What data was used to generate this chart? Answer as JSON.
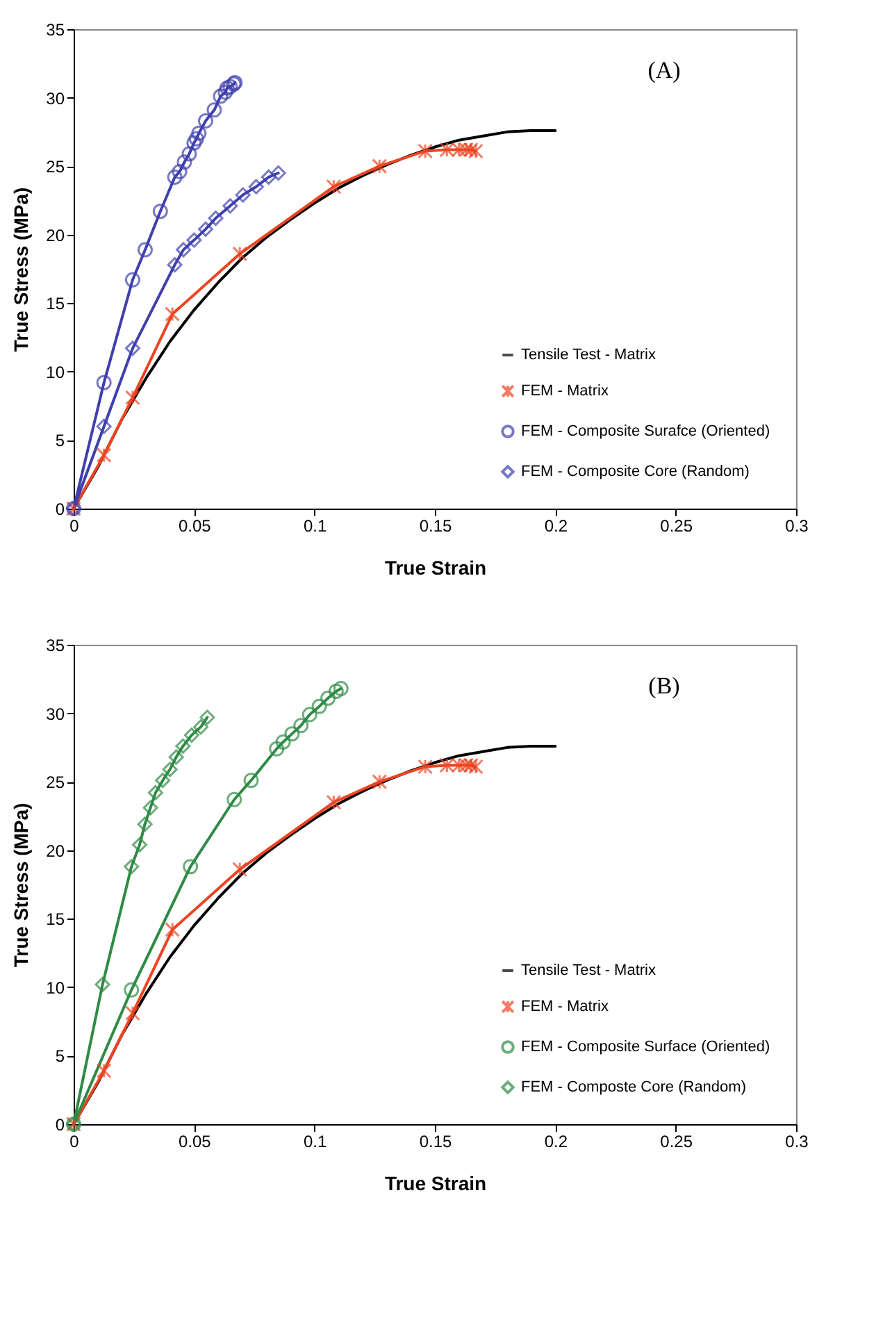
{
  "chart_data": [
    {
      "type": "line",
      "xlabel": "True Strain",
      "ylabel": "True Stress (MPa)",
      "annotations": [
        "(A)"
      ],
      "xlim": [
        0,
        0.3
      ],
      "ylim": [
        0,
        35
      ],
      "xticks": [
        0,
        0.05,
        0.1,
        0.15,
        0.2,
        0.25,
        0.3
      ],
      "yticks": [
        0,
        5,
        10,
        15,
        20,
        25,
        30,
        35
      ],
      "grid": false,
      "legend": "bottom right",
      "series": [
        {
          "name": "Tensile Test - Matrix",
          "color": "#000000",
          "marker": "none",
          "x": [
            0,
            0.01,
            0.02,
            0.03,
            0.04,
            0.05,
            0.06,
            0.07,
            0.08,
            0.09,
            0.1,
            0.11,
            0.12,
            0.13,
            0.14,
            0.15,
            0.16,
            0.17,
            0.18,
            0.19,
            0.2
          ],
          "values": [
            0,
            3,
            6.5,
            9.5,
            12.2,
            14.5,
            16.5,
            18.3,
            19.8,
            21.1,
            22.3,
            23.4,
            24.3,
            25.1,
            25.8,
            26.4,
            26.9,
            27.2,
            27.5,
            27.6,
            27.6
          ]
        },
        {
          "name": "FEM - Matrix",
          "color": "#ee4422",
          "marker": "cross",
          "x": [
            0,
            0.0126,
            0.0245,
            0.041,
            0.069,
            0.108,
            0.127,
            0.146,
            0.155,
            0.16,
            0.163,
            0.165,
            0.167
          ],
          "values": [
            0,
            3.9,
            8.1,
            14.2,
            18.6,
            23.5,
            25,
            26.1,
            26.2,
            26.2,
            26.2,
            26.2,
            26.1
          ]
        },
        {
          "name": "FEM - Composite Surafce (Oriented)",
          "color": "#3f3fae",
          "marker": "circle",
          "x": [
            0,
            0.0126,
            0.0245,
            0.0297,
            0.036,
            0.042,
            0.044,
            0.046,
            0.048,
            0.05,
            0.051,
            0.052,
            0.0548,
            0.0584,
            0.061,
            0.063,
            0.0637,
            0.065,
            0.0665,
            0.067
          ],
          "values": [
            0,
            9.2,
            16.7,
            18.9,
            21.7,
            24.2,
            24.6,
            25.3,
            25.9,
            26.7,
            27.0,
            27.4,
            28.3,
            29.1,
            30.1,
            30.4,
            30.7,
            30.8,
            31.0,
            31.1
          ]
        },
        {
          "name": "FEM - Composite Core (Random)",
          "color": "#3f3fae",
          "marker": "diamond",
          "x": [
            0,
            0.0126,
            0.0245,
            0.042,
            0.0456,
            0.05,
            0.0548,
            0.059,
            0.065,
            0.0703,
            0.0758,
            0.081,
            0.085
          ],
          "values": [
            0,
            6.0,
            11.7,
            17.8,
            18.9,
            19.6,
            20.4,
            21.2,
            22.1,
            22.9,
            23.5,
            24.2,
            24.5
          ]
        }
      ]
    },
    {
      "type": "line",
      "xlabel": "True Strain",
      "ylabel": "True Stress (MPa)",
      "annotations": [
        "(B)"
      ],
      "xlim": [
        0,
        0.3
      ],
      "ylim": [
        0,
        35
      ],
      "xticks": [
        0,
        0.05,
        0.1,
        0.15,
        0.2,
        0.25,
        0.3
      ],
      "yticks": [
        0,
        5,
        10,
        15,
        20,
        25,
        30,
        35
      ],
      "grid": false,
      "legend": "bottom right",
      "series": [
        {
          "name": "Tensile Test - Matrix",
          "color": "#000000",
          "marker": "none",
          "x": [
            0,
            0.01,
            0.02,
            0.03,
            0.04,
            0.05,
            0.06,
            0.07,
            0.08,
            0.09,
            0.1,
            0.11,
            0.12,
            0.13,
            0.14,
            0.15,
            0.16,
            0.17,
            0.18,
            0.19,
            0.2
          ],
          "values": [
            0,
            3,
            6.5,
            9.5,
            12.2,
            14.5,
            16.5,
            18.3,
            19.8,
            21.1,
            22.3,
            23.4,
            24.3,
            25.1,
            25.8,
            26.4,
            26.9,
            27.2,
            27.5,
            27.6,
            27.6
          ]
        },
        {
          "name": "FEM - Matrix",
          "color": "#ee4422",
          "marker": "cross",
          "x": [
            0,
            0.0126,
            0.0245,
            0.041,
            0.069,
            0.108,
            0.127,
            0.146,
            0.155,
            0.16,
            0.163,
            0.165,
            0.167
          ],
          "values": [
            0,
            3.9,
            8.1,
            14.2,
            18.6,
            23.5,
            25,
            26.1,
            26.2,
            26.2,
            26.2,
            26.2,
            26.1
          ]
        },
        {
          "name": "FEM - Composite Surface (Oriented)",
          "color": "#2e8b45",
          "marker": "circle",
          "x": [
            0,
            0.024,
            0.0485,
            0.0667,
            0.0737,
            0.0843,
            0.087,
            0.0907,
            0.0944,
            0.098,
            0.102,
            0.1056,
            0.109,
            0.111
          ],
          "values": [
            0,
            9.8,
            18.8,
            23.7,
            25.1,
            27.4,
            27.9,
            28.5,
            29.1,
            29.9,
            30.5,
            31.1,
            31.6,
            31.8
          ]
        },
        {
          "name": "FEM - Composte Core (Random)",
          "color": "#2e8b45",
          "marker": "diamond",
          "x": [
            0,
            0.012,
            0.024,
            0.0274,
            0.0296,
            0.0319,
            0.034,
            0.037,
            0.04,
            0.0426,
            0.0454,
            0.049,
            0.0528,
            0.0555
          ],
          "values": [
            0,
            10.2,
            18.8,
            20.4,
            21.9,
            23.1,
            24.2,
            25.1,
            25.9,
            26.8,
            27.6,
            28.4,
            29.0,
            29.7
          ]
        }
      ]
    }
  ]
}
